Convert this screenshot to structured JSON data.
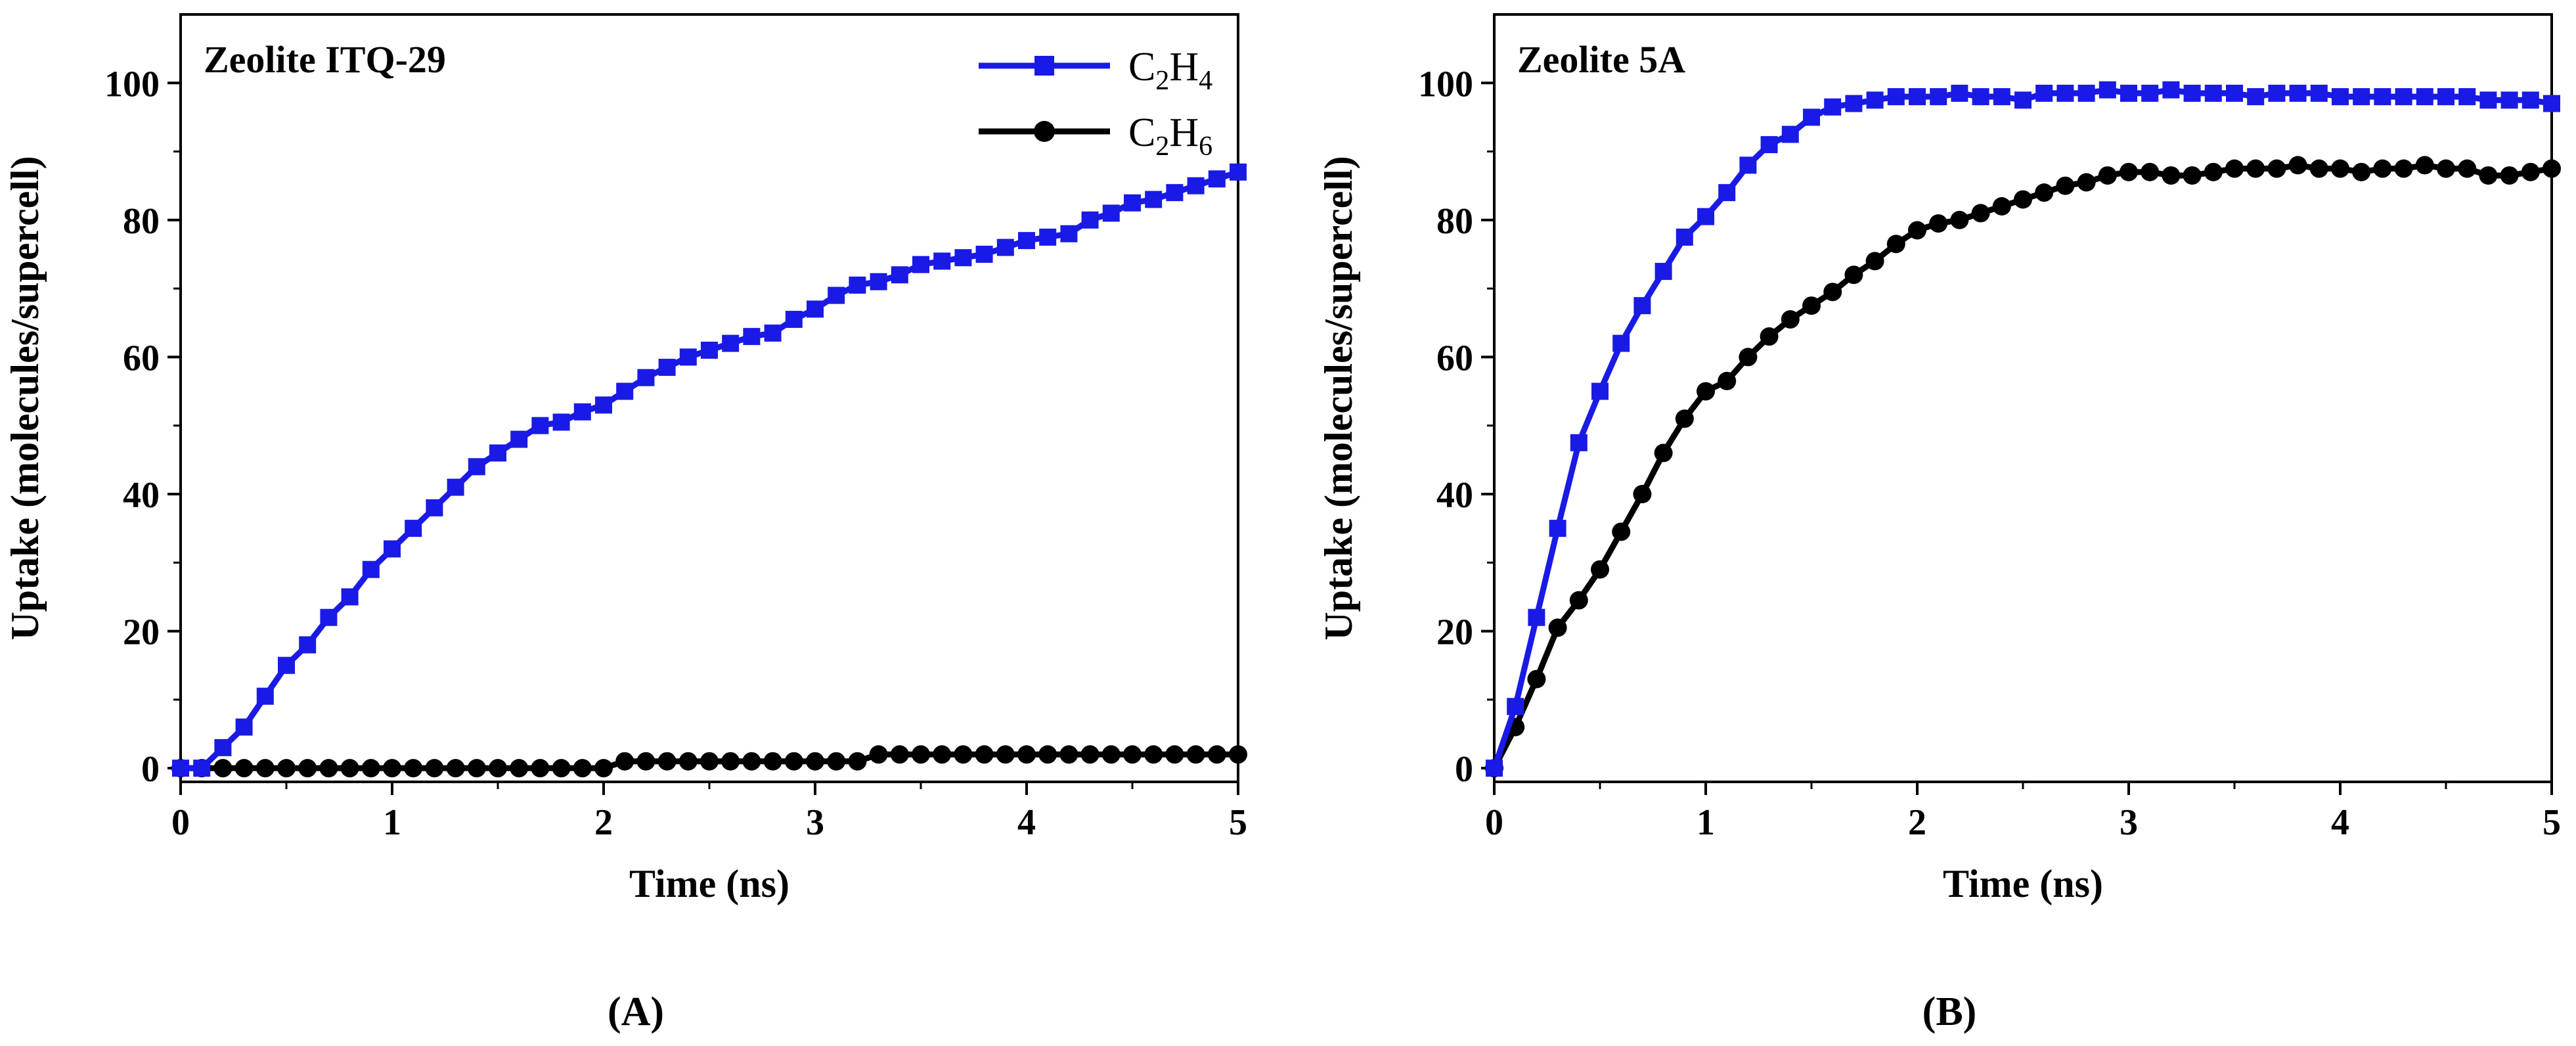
{
  "chart_data": [
    {
      "type": "line",
      "panel_label": "(A)",
      "title": "Zeolite ITQ-29",
      "xlabel": "Time (ns)",
      "ylabel": "Uptake (molecules/supercell)",
      "xlim": [
        0,
        5
      ],
      "ylim": [
        -2,
        110
      ],
      "xticks": [
        0,
        1,
        2,
        3,
        4,
        5
      ],
      "yticks": [
        0,
        20,
        40,
        60,
        80,
        100
      ],
      "grid": false,
      "legend": {
        "position": "top-right",
        "entries": [
          {
            "base": "C",
            "sub1": "2",
            "mid": "H",
            "sub2": "4",
            "series": "C2H4"
          },
          {
            "base": "C",
            "sub1": "2",
            "mid": "H",
            "sub2": "6",
            "series": "C2H6"
          }
        ]
      },
      "series": [
        {
          "name": "C2H4",
          "color": "#1a1ae6",
          "marker": "square",
          "x": [
            0,
            0.1,
            0.2,
            0.3,
            0.4,
            0.5,
            0.6,
            0.7,
            0.8,
            0.9,
            1.0,
            1.1,
            1.2,
            1.3,
            1.4,
            1.5,
            1.6,
            1.7,
            1.8,
            1.9,
            2.0,
            2.1,
            2.2,
            2.3,
            2.4,
            2.5,
            2.6,
            2.7,
            2.8,
            2.9,
            3.0,
            3.1,
            3.2,
            3.3,
            3.4,
            3.5,
            3.6,
            3.7,
            3.8,
            3.9,
            4.0,
            4.1,
            4.2,
            4.3,
            4.4,
            4.5,
            4.6,
            4.7,
            4.8,
            4.9,
            5.0
          ],
          "y": [
            0,
            0,
            3,
            6,
            10.5,
            15,
            18,
            22,
            25,
            29,
            32,
            35,
            38,
            41,
            44,
            46,
            48,
            50,
            50.5,
            52,
            53,
            55,
            57,
            58.5,
            60,
            61,
            62,
            63,
            63.5,
            65.5,
            67,
            69,
            70.5,
            71,
            72,
            73.5,
            74,
            74.5,
            75,
            76,
            77,
            77.5,
            78,
            80,
            81,
            82.5,
            83,
            84,
            85,
            86,
            87
          ]
        },
        {
          "name": "C2H6",
          "color": "#000000",
          "marker": "circle",
          "x": [
            0,
            0.1,
            0.2,
            0.3,
            0.4,
            0.5,
            0.6,
            0.7,
            0.8,
            0.9,
            1.0,
            1.1,
            1.2,
            1.3,
            1.4,
            1.5,
            1.6,
            1.7,
            1.8,
            1.9,
            2.0,
            2.1,
            2.2,
            2.3,
            2.4,
            2.5,
            2.6,
            2.7,
            2.8,
            2.9,
            3.0,
            3.1,
            3.2,
            3.3,
            3.4,
            3.5,
            3.6,
            3.7,
            3.8,
            3.9,
            4.0,
            4.1,
            4.2,
            4.3,
            4.4,
            4.5,
            4.6,
            4.7,
            4.8,
            4.9,
            5.0
          ],
          "y": [
            0,
            0,
            0,
            0,
            0,
            0,
            0,
            0,
            0,
            0,
            0,
            0,
            0,
            0,
            0,
            0,
            0,
            0,
            0,
            0,
            0,
            1,
            1,
            1,
            1,
            1,
            1,
            1,
            1,
            1,
            1,
            1,
            1,
            2,
            2,
            2,
            2,
            2,
            2,
            2,
            2,
            2,
            2,
            2,
            2,
            2,
            2,
            2,
            2,
            2,
            2
          ]
        }
      ]
    },
    {
      "type": "line",
      "panel_label": "(B)",
      "title": "Zeolite 5A",
      "xlabel": "Time (ns)",
      "ylabel": "Uptake (molecules/supercell)",
      "xlim": [
        0,
        5
      ],
      "ylim": [
        -2,
        110
      ],
      "xticks": [
        0,
        1,
        2,
        3,
        4,
        5
      ],
      "yticks": [
        0,
        20,
        40,
        60,
        80,
        100
      ],
      "grid": false,
      "legend": null,
      "series": [
        {
          "name": "C2H4",
          "color": "#1a1ae6",
          "marker": "square",
          "x": [
            0,
            0.1,
            0.2,
            0.3,
            0.4,
            0.5,
            0.6,
            0.7,
            0.8,
            0.9,
            1.0,
            1.1,
            1.2,
            1.3,
            1.4,
            1.5,
            1.6,
            1.7,
            1.8,
            1.9,
            2.0,
            2.1,
            2.2,
            2.3,
            2.4,
            2.5,
            2.6,
            2.7,
            2.8,
            2.9,
            3.0,
            3.1,
            3.2,
            3.3,
            3.4,
            3.5,
            3.6,
            3.7,
            3.8,
            3.9,
            4.0,
            4.1,
            4.2,
            4.3,
            4.4,
            4.5,
            4.6,
            4.7,
            4.8,
            4.9,
            5.0
          ],
          "y": [
            0,
            9,
            22,
            35,
            47.5,
            55,
            62,
            67.5,
            72.5,
            77.5,
            80.5,
            84,
            88,
            91,
            92.5,
            95,
            96.5,
            97,
            97.5,
            98,
            98,
            98,
            98.5,
            98,
            98,
            97.5,
            98.5,
            98.5,
            98.5,
            99,
            98.5,
            98.5,
            99,
            98.5,
            98.5,
            98.5,
            98,
            98.5,
            98.5,
            98.5,
            98,
            98,
            98,
            98,
            98,
            98,
            98,
            97.5,
            97.5,
            97.5,
            97
          ]
        },
        {
          "name": "C2H6",
          "color": "#000000",
          "marker": "circle",
          "x": [
            0,
            0.1,
            0.2,
            0.3,
            0.4,
            0.5,
            0.6,
            0.7,
            0.8,
            0.9,
            1.0,
            1.1,
            1.2,
            1.3,
            1.4,
            1.5,
            1.6,
            1.7,
            1.8,
            1.9,
            2.0,
            2.1,
            2.2,
            2.3,
            2.4,
            2.5,
            2.6,
            2.7,
            2.8,
            2.9,
            3.0,
            3.1,
            3.2,
            3.3,
            3.4,
            3.5,
            3.6,
            3.7,
            3.8,
            3.9,
            4.0,
            4.1,
            4.2,
            4.3,
            4.4,
            4.5,
            4.6,
            4.7,
            4.8,
            4.9,
            5.0
          ],
          "y": [
            0,
            6,
            13,
            20.5,
            24.5,
            29,
            34.5,
            40,
            46,
            51,
            55,
            56.5,
            60,
            63,
            65.5,
            67.5,
            69.5,
            72,
            74,
            76.5,
            78.5,
            79.5,
            80,
            81,
            82,
            83,
            84,
            85,
            85.5,
            86.5,
            87,
            87,
            86.5,
            86.5,
            87,
            87.5,
            87.5,
            87.5,
            88,
            87.5,
            87.5,
            87,
            87.5,
            87.5,
            88,
            87.5,
            87.5,
            86.5,
            86.5,
            87,
            87.5
          ]
        }
      ]
    }
  ]
}
